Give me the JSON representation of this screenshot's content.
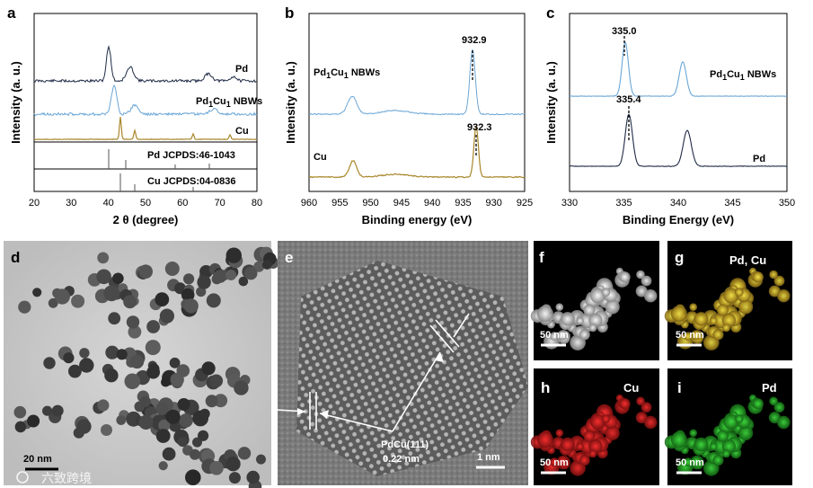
{
  "panels": {
    "a": {
      "label": "a",
      "ylabel": "Intensity (a. u.)",
      "xlabel": "2 θ (degree)",
      "xticks": [
        "20",
        "30",
        "40",
        "50",
        "60",
        "70",
        "80"
      ],
      "trace_labels": {
        "pd": "Pd",
        "pdcu_pre": "Pd",
        "pdcu_sub1": "1",
        "pdcu_mid": "Cu",
        "pdcu_sub2": "1",
        "pdcu_post": " NBWs",
        "cu": "Cu"
      },
      "ref_labels": {
        "pd": "Pd JCPDS:46-1043",
        "cu": "Cu JCPDS:04-0836"
      },
      "colors": {
        "pd": "#1e2a45",
        "pdcu": "#6aa6d6",
        "cu": "#a8862a"
      }
    },
    "b": {
      "label": "b",
      "ylabel": "Intensity (a. u.)",
      "xlabel": "Binding energy (eV)",
      "xticks": [
        "960",
        "955",
        "950",
        "945",
        "940",
        "935",
        "930",
        "925"
      ],
      "trace_labels": {
        "pdcu_pre": "Pd",
        "pdcu_sub1": "1",
        "pdcu_mid": "Cu",
        "pdcu_sub2": "1",
        "pdcu_post": " NBWs",
        "cu": "Cu"
      },
      "peaks": {
        "top": "932.9",
        "bottom": "932.3"
      },
      "colors": {
        "pdcu": "#6aa6d6",
        "cu": "#a8862a"
      }
    },
    "c": {
      "label": "c",
      "ylabel": "Intensity (a. u.)",
      "xlabel": "Binding Energy (eV)",
      "xticks": [
        "330",
        "335",
        "340",
        "345",
        "350"
      ],
      "trace_labels": {
        "pdcu_pre": "Pd",
        "pdcu_sub1": "1",
        "pdcu_mid": "Cu",
        "pdcu_sub2": "1",
        "pdcu_post": " NBWs",
        "pd": "Pd"
      },
      "peaks": {
        "top": "335.0",
        "bottom": "335.4"
      },
      "colors": {
        "pdcu": "#6aa6d6",
        "pd": "#1e2a45"
      }
    },
    "d": {
      "label": "d",
      "scale": "20 nm",
      "watermark": "六致跨境"
    },
    "e": {
      "label": "e",
      "scale": "1 nm",
      "annotation_line1": "PdCu(111)",
      "annotation_line2": "0.22 nm"
    },
    "f": {
      "label": "f",
      "scale": "50 nm"
    },
    "g": {
      "label": "g",
      "scale": "50 nm",
      "element": "Pd, Cu"
    },
    "h": {
      "label": "h",
      "scale": "50 nm",
      "element": "Cu"
    },
    "i": {
      "label": "i",
      "scale": "50 nm",
      "element": "Pd"
    }
  }
}
